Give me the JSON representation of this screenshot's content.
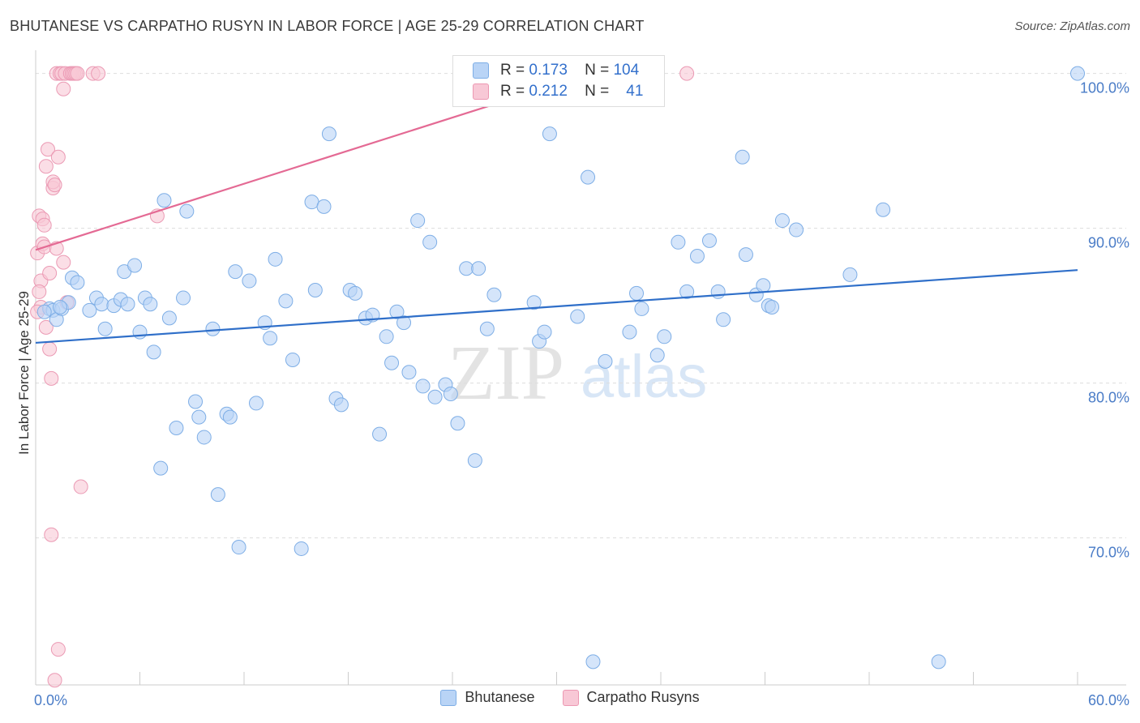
{
  "title": "BHUTANESE VS CARPATHO RUSYN IN LABOR FORCE | AGE 25-29 CORRELATION CHART",
  "source": "Source: ZipAtlas.com",
  "watermark": {
    "zip": "ZIP",
    "atlas": "atlas"
  },
  "legend_stats": {
    "blue": {
      "r_label": "R =",
      "r_value": "0.173",
      "n_label": "N =",
      "n_value": "104"
    },
    "pink": {
      "r_label": "R =",
      "r_value": "0.212",
      "n_label": "N =",
      "n_value": "41"
    }
  },
  "legend": {
    "blue": "Bhutanese",
    "pink": "Carpatho Rusyns"
  },
  "colors": {
    "blue_fill": "#b9d4f6",
    "blue_line": "#2f6fc9",
    "pink_fill": "#f8c8d6",
    "pink_line": "#e46a94",
    "tick_label": "#4a7cc7"
  },
  "chart_data": {
    "type": "scatter",
    "xlabel": "",
    "ylabel": "In Labor Force | Age 25-29",
    "xlim": [
      0,
      60
    ],
    "ylim": [
      60.5,
      101.5
    ],
    "x_tick_labels": [
      "0.0%",
      "60.0%"
    ],
    "y_ticks": [
      70,
      80,
      90,
      100
    ],
    "y_tick_labels": [
      "70.0%",
      "80.0%",
      "90.0%",
      "100.0%"
    ],
    "series": [
      {
        "name": "Bhutanese",
        "trend": {
          "x0": 0,
          "y0": 82.6,
          "x1": 60,
          "y1": 87.3
        },
        "points": [
          [
            0.8,
            84.8
          ],
          [
            1.0,
            84.7
          ],
          [
            1.2,
            84.1
          ],
          [
            1.5,
            84.8
          ],
          [
            1.9,
            85.2
          ],
          [
            2.1,
            86.8
          ],
          [
            2.4,
            86.5
          ],
          [
            3.1,
            84.7
          ],
          [
            3.5,
            85.5
          ],
          [
            3.8,
            85.1
          ],
          [
            4.0,
            83.5
          ],
          [
            4.5,
            85.0
          ],
          [
            4.9,
            85.4
          ],
          [
            5.1,
            87.2
          ],
          [
            5.3,
            85.1
          ],
          [
            5.7,
            87.6
          ],
          [
            6.0,
            83.3
          ],
          [
            6.3,
            85.5
          ],
          [
            6.6,
            85.1
          ],
          [
            6.8,
            82.0
          ],
          [
            7.2,
            74.5
          ],
          [
            7.4,
            91.8
          ],
          [
            7.7,
            84.2
          ],
          [
            8.1,
            77.1
          ],
          [
            8.5,
            85.5
          ],
          [
            8.7,
            91.1
          ],
          [
            9.2,
            78.8
          ],
          [
            9.4,
            77.8
          ],
          [
            9.7,
            76.5
          ],
          [
            10.2,
            83.5
          ],
          [
            10.5,
            72.8
          ],
          [
            11.0,
            78.0
          ],
          [
            11.2,
            77.8
          ],
          [
            11.5,
            87.2
          ],
          [
            11.7,
            69.4
          ],
          [
            12.3,
            86.6
          ],
          [
            12.7,
            78.7
          ],
          [
            13.2,
            83.9
          ],
          [
            13.5,
            82.9
          ],
          [
            13.8,
            88.0
          ],
          [
            14.4,
            85.3
          ],
          [
            14.8,
            81.5
          ],
          [
            15.3,
            69.3
          ],
          [
            15.9,
            91.7
          ],
          [
            16.1,
            86.0
          ],
          [
            16.6,
            91.4
          ],
          [
            16.9,
            96.1
          ],
          [
            17.3,
            79.0
          ],
          [
            17.6,
            78.6
          ],
          [
            18.1,
            86.0
          ],
          [
            18.4,
            85.8
          ],
          [
            19.0,
            84.2
          ],
          [
            19.4,
            84.4
          ],
          [
            19.8,
            76.7
          ],
          [
            20.2,
            83.0
          ],
          [
            20.5,
            81.3
          ],
          [
            20.8,
            84.6
          ],
          [
            21.2,
            83.9
          ],
          [
            21.5,
            80.7
          ],
          [
            22.0,
            90.5
          ],
          [
            22.3,
            79.8
          ],
          [
            22.7,
            89.1
          ],
          [
            23.0,
            79.1
          ],
          [
            23.6,
            79.9
          ],
          [
            23.9,
            79.3
          ],
          [
            24.3,
            77.4
          ],
          [
            24.8,
            87.4
          ],
          [
            25.3,
            75.0
          ],
          [
            25.5,
            87.4
          ],
          [
            26.0,
            83.5
          ],
          [
            26.4,
            85.7
          ],
          [
            28.7,
            85.2
          ],
          [
            29.0,
            82.7
          ],
          [
            29.3,
            83.3
          ],
          [
            29.6,
            96.1
          ],
          [
            31.2,
            84.3
          ],
          [
            31.8,
            93.3
          ],
          [
            32.1,
            62.0
          ],
          [
            32.8,
            81.4
          ],
          [
            34.2,
            83.3
          ],
          [
            34.6,
            85.8
          ],
          [
            34.9,
            84.8
          ],
          [
            35.8,
            81.8
          ],
          [
            36.2,
            83.0
          ],
          [
            37.0,
            89.1
          ],
          [
            37.5,
            85.9
          ],
          [
            38.1,
            88.2
          ],
          [
            38.8,
            89.2
          ],
          [
            39.3,
            85.9
          ],
          [
            39.6,
            84.1
          ],
          [
            40.7,
            94.6
          ],
          [
            40.9,
            88.3
          ],
          [
            41.5,
            85.7
          ],
          [
            41.9,
            86.3
          ],
          [
            42.2,
            85.0
          ],
          [
            42.4,
            84.9
          ],
          [
            43.0,
            90.5
          ],
          [
            43.8,
            89.9
          ],
          [
            46.9,
            87.0
          ],
          [
            48.8,
            91.2
          ],
          [
            52.0,
            62.0
          ],
          [
            60.0,
            100.0
          ],
          [
            0.5,
            84.6
          ],
          [
            1.4,
            84.9
          ]
        ]
      },
      {
        "name": "Carpatho Rusyns",
        "trend": {
          "x0": 0,
          "y0": 88.6,
          "x1": 32,
          "y1": 100.0
        },
        "points": [
          [
            0.1,
            88.4
          ],
          [
            0.2,
            90.8
          ],
          [
            0.3,
            86.6
          ],
          [
            0.3,
            84.9
          ],
          [
            0.4,
            90.6
          ],
          [
            0.4,
            89.0
          ],
          [
            0.5,
            90.2
          ],
          [
            0.5,
            88.8
          ],
          [
            0.6,
            94.0
          ],
          [
            0.6,
            83.6
          ],
          [
            0.7,
            95.1
          ],
          [
            0.8,
            87.1
          ],
          [
            0.8,
            82.2
          ],
          [
            0.9,
            80.3
          ],
          [
            0.9,
            70.2
          ],
          [
            1.0,
            92.6
          ],
          [
            1.0,
            93.0
          ],
          [
            1.1,
            92.8
          ],
          [
            1.2,
            88.7
          ],
          [
            1.2,
            100.0
          ],
          [
            1.3,
            94.6
          ],
          [
            1.4,
            100.0
          ],
          [
            1.5,
            100.0
          ],
          [
            1.6,
            99.0
          ],
          [
            1.6,
            87.8
          ],
          [
            1.7,
            100.0
          ],
          [
            1.8,
            85.2
          ],
          [
            2.0,
            100.0
          ],
          [
            2.1,
            100.0
          ],
          [
            2.2,
            100.0
          ],
          [
            2.3,
            100.0
          ],
          [
            2.4,
            100.0
          ],
          [
            2.6,
            73.3
          ],
          [
            3.3,
            100.0
          ],
          [
            3.6,
            100.0
          ],
          [
            7.0,
            90.8
          ],
          [
            37.5,
            100.0
          ],
          [
            0.2,
            85.9
          ],
          [
            0.1,
            84.6
          ],
          [
            1.3,
            62.8
          ],
          [
            1.1,
            60.8
          ]
        ]
      }
    ]
  }
}
